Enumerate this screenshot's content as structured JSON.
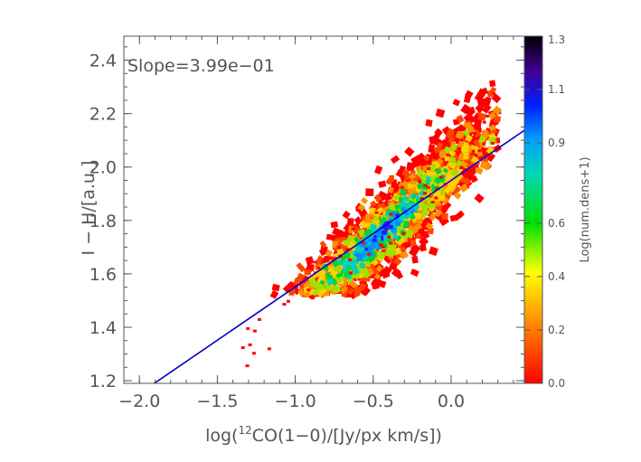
{
  "chart_data": {
    "type": "heatmap",
    "xlabel_pre": "log(",
    "xlabel_sup": "12",
    "xlabel_post": "CO(1−0)/[Jy/px km/s])",
    "ylabel": "I − H/[a.u.]",
    "xlim": [
      -2.1,
      0.47
    ],
    "ylim": [
      1.19,
      2.49
    ],
    "xticks": [
      -2.0,
      -1.5,
      -1.0,
      -0.5,
      0.0
    ],
    "xtick_labels": [
      "−2.0",
      "−1.5",
      "−1.0",
      "−0.5",
      "0.0"
    ],
    "yticks": [
      1.2,
      1.4,
      1.6,
      1.8,
      2.0,
      2.2,
      2.4
    ],
    "ytick_labels": [
      "1.2",
      "1.4",
      "1.6",
      "1.8",
      "2.0",
      "2.2",
      "2.4"
    ],
    "annotation": "Slope=3.99e−01",
    "fit_line": {
      "slope": 0.399,
      "intercept": 1.95,
      "color": "#0000cc"
    },
    "density_cloud": {
      "center": [
        -0.45,
        1.75
      ],
      "major_axis_slope": 0.55,
      "extent_x": [
        -1.4,
        0.3
      ],
      "extent_y": [
        1.52,
        2.32
      ]
    },
    "colorbar": {
      "label": "Log(num.dens+1)",
      "range": [
        0.0,
        1.3
      ],
      "tick_labels": [
        "0.0",
        "0.2",
        "0.4",
        "0.6",
        "0.9",
        "1.1",
        "1.3"
      ],
      "tick_values": [
        0.0,
        0.2,
        0.4,
        0.6,
        0.9,
        1.1,
        1.3
      ],
      "colors": [
        "#ff0000",
        "#ff8c00",
        "#ffff00",
        "#00e000",
        "#00d0c0",
        "#0070ff",
        "#3000a0",
        "#000000"
      ]
    }
  }
}
